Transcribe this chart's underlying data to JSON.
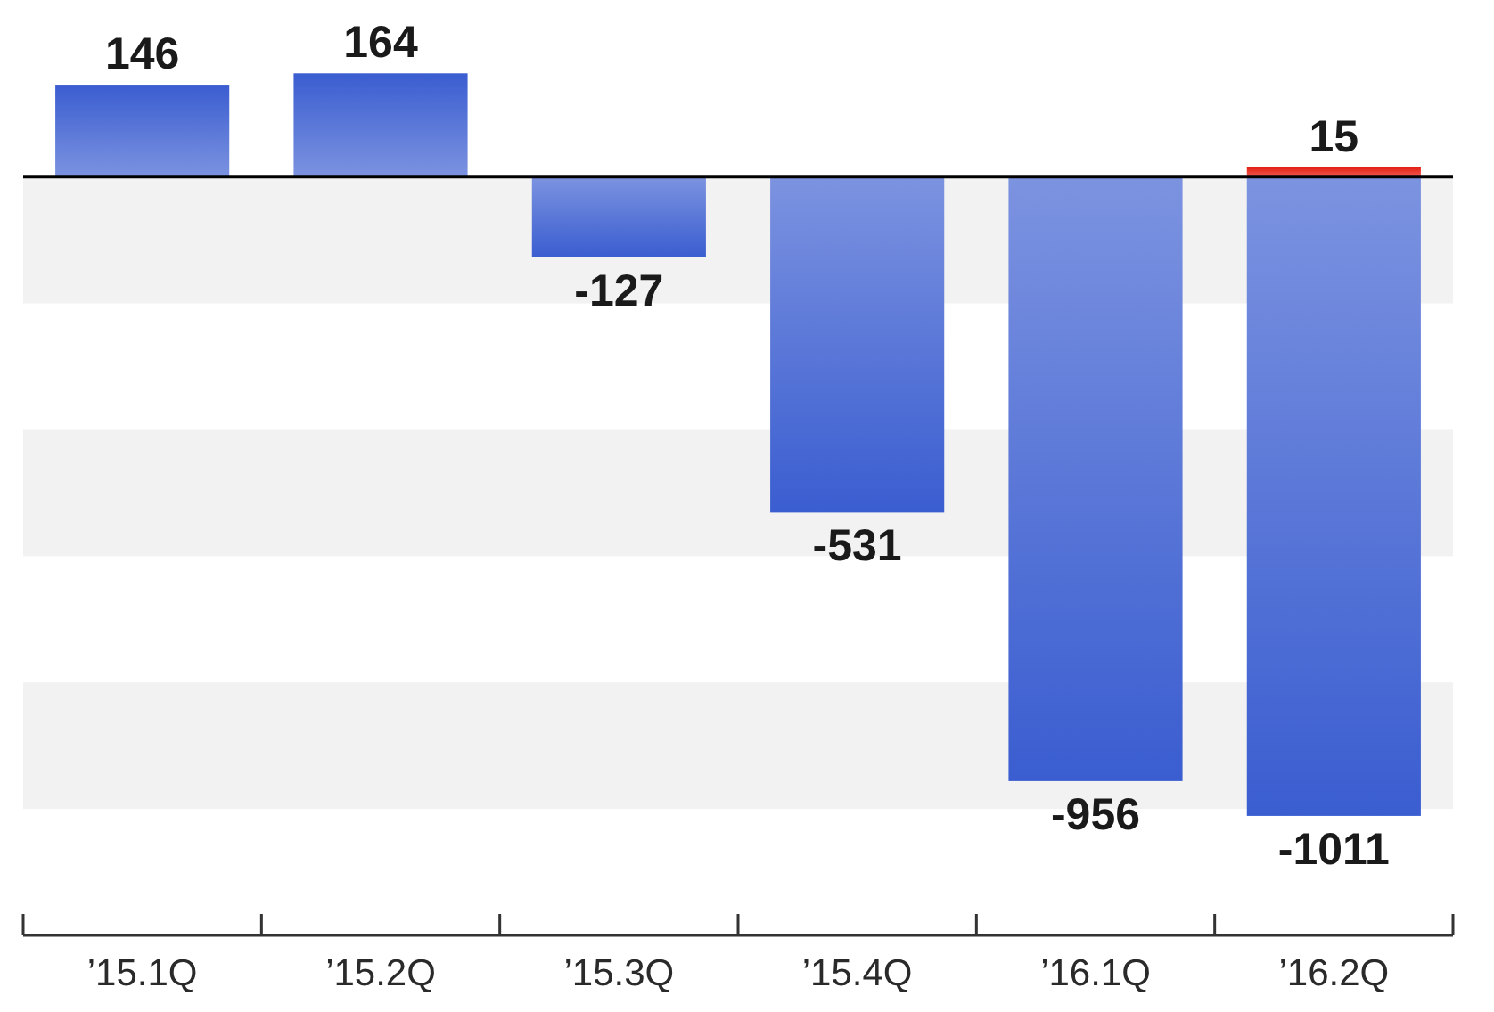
{
  "chart_data": {
    "type": "bar",
    "categories": [
      "’15.1Q",
      "’15.2Q",
      "’15.3Q",
      "’15.4Q",
      "’16.1Q",
      "’16.2Q"
    ],
    "series": [
      {
        "color": "#5b78d8",
        "values": [
          146,
          164,
          -127,
          -531,
          -956,
          -1011
        ]
      },
      {
        "color": "#ee3b30",
        "values": [
          null,
          null,
          null,
          null,
          null,
          15
        ]
      }
    ],
    "stacked": true,
    "ylim": [
      -1200,
      280
    ],
    "data_labels": true,
    "bands": [
      {
        "axis": "y",
        "from": 0,
        "to": -200,
        "color": "#f2f2f2"
      },
      {
        "axis": "y",
        "from": -400,
        "to": -600,
        "color": "#f2f2f2"
      },
      {
        "axis": "y",
        "from": -800,
        "to": -1000,
        "color": "#f2f2f2"
      }
    ],
    "ref_lines": [
      {
        "axis": "y",
        "value": 0,
        "color": "#000000"
      }
    ]
  }
}
